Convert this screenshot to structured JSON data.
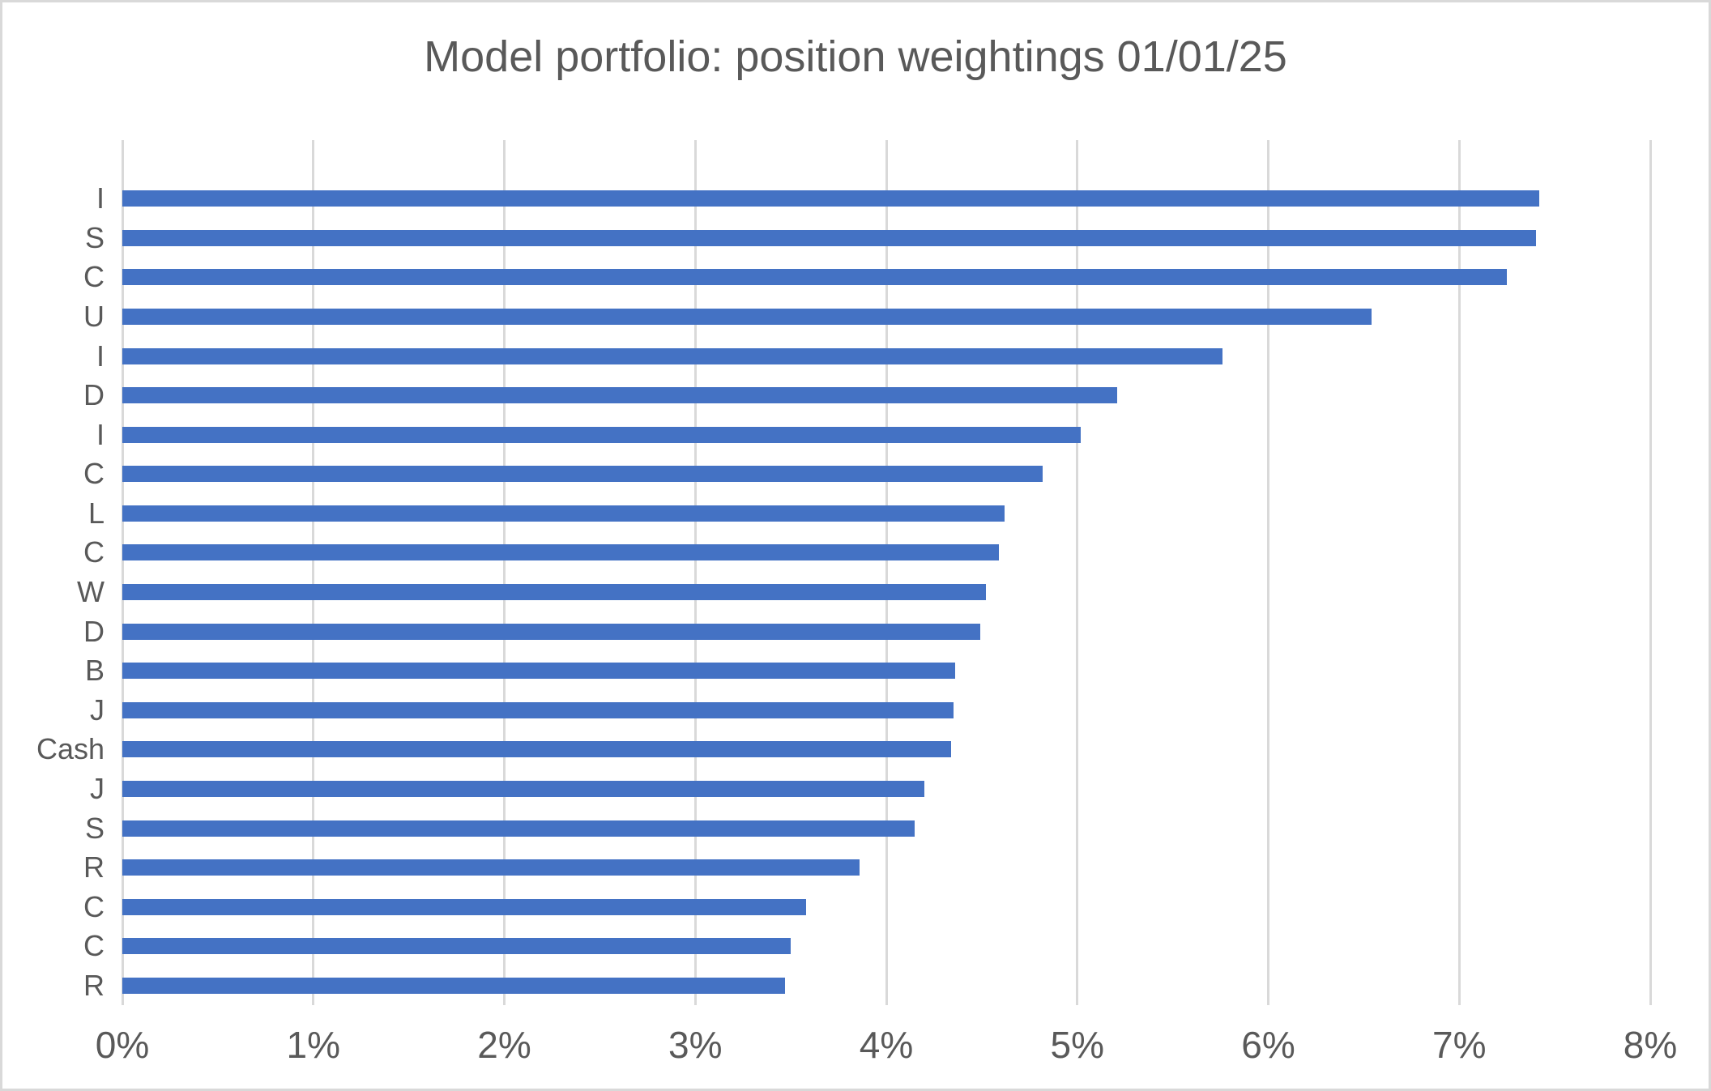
{
  "title": "Model portfolio: position weightings 01/01/25",
  "chart_data": {
    "type": "bar",
    "orientation": "horizontal",
    "title": "Model portfolio: position weightings 01/01/25",
    "categories": [
      "I",
      "S",
      "C",
      "U",
      "I",
      "D",
      "I",
      "C",
      "L",
      "C",
      "W",
      "D",
      "B",
      "J",
      "Cash",
      "J",
      "S",
      "R",
      "C",
      "C",
      "R"
    ],
    "values": [
      7.42,
      7.4,
      7.25,
      6.54,
      5.76,
      5.21,
      5.02,
      4.82,
      4.62,
      4.59,
      4.52,
      4.49,
      4.36,
      4.35,
      4.34,
      4.2,
      4.15,
      3.86,
      3.58,
      3.5,
      3.47
    ],
    "value_unit": "%",
    "xlabel": "",
    "ylabel": "",
    "xlim": [
      0,
      8
    ],
    "x_tick_labels": [
      "0%",
      "1%",
      "2%",
      "3%",
      "4%",
      "5%",
      "6%",
      "7%",
      "8%"
    ],
    "grid": true,
    "legend": false
  },
  "colors": {
    "bar": "#4472C4",
    "text": "#595959",
    "gridline": "#D9D9D9",
    "border": "#D9D9D9",
    "background": "#FFFFFF"
  }
}
